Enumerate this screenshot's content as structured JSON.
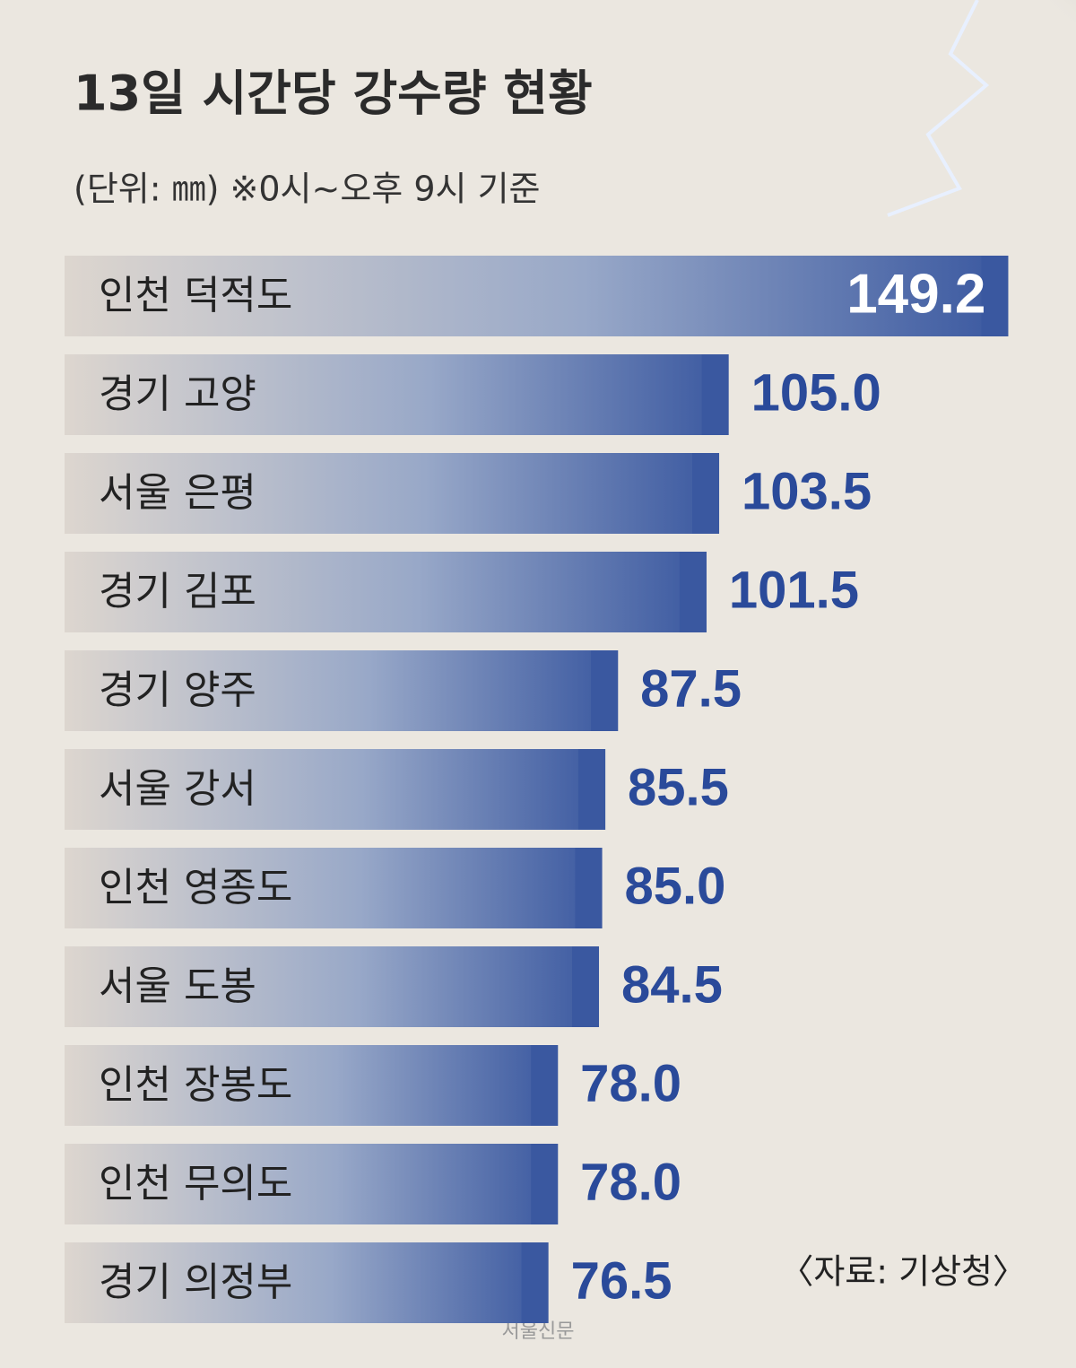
{
  "chart_data": {
    "type": "bar",
    "orientation": "horizontal",
    "title": "13일 시간당 강수량 현황",
    "subtitle": "(단위: ㎜) ※0시~오후 9시 기준",
    "categories": [
      "인천 덕적도",
      "경기 고양",
      "서울 은평",
      "경기 김포",
      "경기 양주",
      "서울 강서",
      "인천 영종도",
      "서울 도봉",
      "인천 장봉도",
      "인천 무의도",
      "경기 의정부"
    ],
    "values": [
      149.2,
      105,
      103.5,
      101.5,
      87.5,
      85.5,
      85,
      84.5,
      78,
      78,
      76.5
    ],
    "value_labels": [
      "149.2",
      "105.0",
      "103.5",
      "101.5",
      "87.5",
      "85.5",
      "85.0",
      "84.5",
      "78.0",
      "78.0",
      "76.5"
    ],
    "color": "#3a58a0",
    "xlim": [
      0,
      150
    ],
    "source": "〈자료: 기상청〉",
    "watermark": "서울신문"
  }
}
